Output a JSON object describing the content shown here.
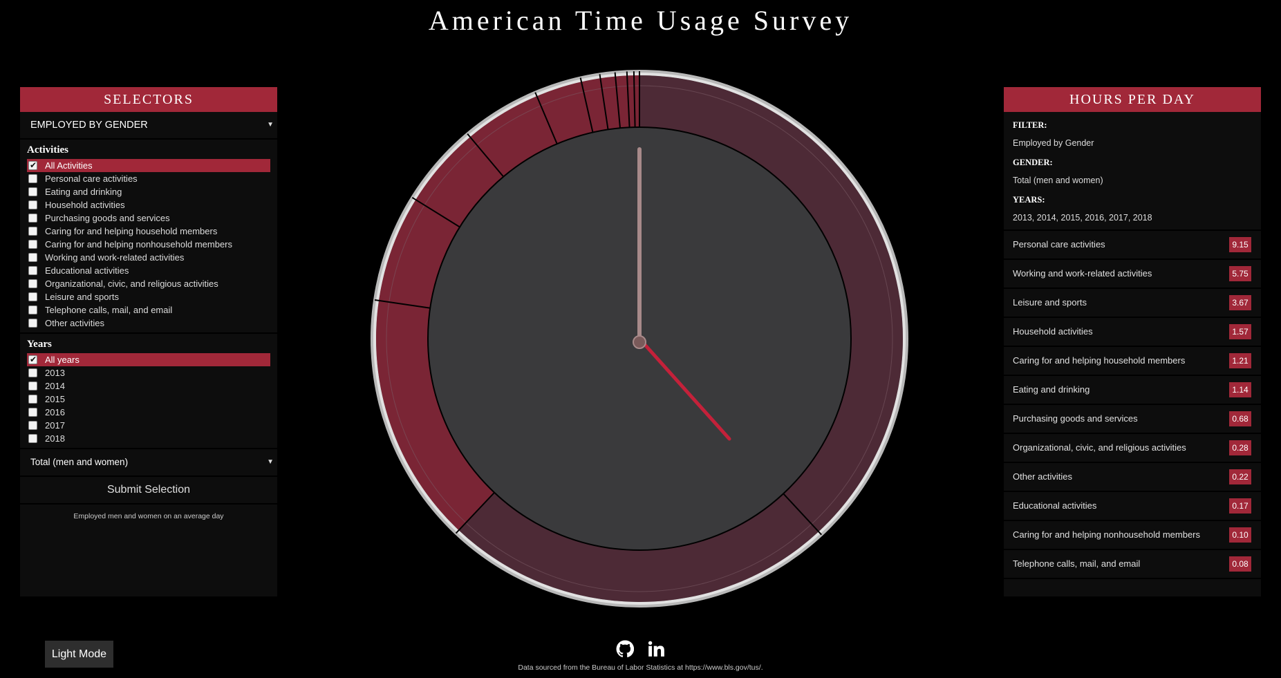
{
  "title": "American Time Usage Survey",
  "selectors": {
    "header": "SELECTORS",
    "dataset": "EMPLOYED BY GENDER",
    "activities_title": "Activities",
    "activities": [
      {
        "label": "All Activities",
        "checked": true
      },
      {
        "label": "Personal care activities",
        "checked": false
      },
      {
        "label": "Eating and drinking",
        "checked": false
      },
      {
        "label": "Household activities",
        "checked": false
      },
      {
        "label": "Purchasing goods and services",
        "checked": false
      },
      {
        "label": "Caring for and helping household members",
        "checked": false
      },
      {
        "label": "Caring for and helping nonhousehold members",
        "checked": false
      },
      {
        "label": "Working and work-related activities",
        "checked": false
      },
      {
        "label": "Educational activities",
        "checked": false
      },
      {
        "label": "Organizational, civic, and religious activities",
        "checked": false
      },
      {
        "label": "Leisure and sports",
        "checked": false
      },
      {
        "label": "Telephone calls, mail, and email",
        "checked": false
      },
      {
        "label": "Other activities",
        "checked": false
      }
    ],
    "years_title": "Years",
    "years": [
      {
        "label": "All years",
        "checked": true
      },
      {
        "label": "2013",
        "checked": false
      },
      {
        "label": "2014",
        "checked": false
      },
      {
        "label": "2015",
        "checked": false
      },
      {
        "label": "2016",
        "checked": false
      },
      {
        "label": "2017",
        "checked": false
      },
      {
        "label": "2018",
        "checked": false
      }
    ],
    "gender": "Total (men and women)",
    "submit": "Submit Selection",
    "note": "Employed men and women on an average day"
  },
  "hours": {
    "header": "HOURS PER DAY",
    "filter_label": "FILTER:",
    "filter_value": "Employed by Gender",
    "gender_label": "GENDER:",
    "gender_value": "Total (men and women)",
    "years_label": "YEARS:",
    "years_value": "2013, 2014, 2015, 2016, 2017, 2018",
    "rows": [
      {
        "label": "Personal care activities",
        "value": "9.15"
      },
      {
        "label": "Working and work-related activities",
        "value": "5.75"
      },
      {
        "label": "Leisure and sports",
        "value": "3.67"
      },
      {
        "label": "Household activities",
        "value": "1.57"
      },
      {
        "label": "Caring for and helping household members",
        "value": "1.21"
      },
      {
        "label": "Eating and drinking",
        "value": "1.14"
      },
      {
        "label": "Purchasing goods and services",
        "value": "0.68"
      },
      {
        "label": "Organizational, civic, and religious activities",
        "value": "0.28"
      },
      {
        "label": "Other activities",
        "value": "0.22"
      },
      {
        "label": "Educational activities",
        "value": "0.17"
      },
      {
        "label": "Caring for and helping nonhousehold members",
        "value": "0.10"
      },
      {
        "label": "Telephone calls, mail, and email",
        "value": "0.08"
      }
    ]
  },
  "chart_data": {
    "type": "pie",
    "note": "24-hour clock ring; slices sequential clockwise from 12 o'clock",
    "slices": [
      {
        "label": "Personal care activities",
        "value": 9.15
      },
      {
        "label": "Working and work-related activities",
        "value": 5.75
      },
      {
        "label": "Leisure and sports",
        "value": 3.67
      },
      {
        "label": "Household activities",
        "value": 1.57
      },
      {
        "label": "Caring for and helping household members",
        "value": 1.21
      },
      {
        "label": "Eating and drinking",
        "value": 1.14
      },
      {
        "label": "Purchasing goods and services",
        "value": 0.68
      },
      {
        "label": "Organizational, civic, and religious activities",
        "value": 0.28
      },
      {
        "label": "Other activities",
        "value": 0.22
      },
      {
        "label": "Educational activities",
        "value": 0.17
      },
      {
        "label": "Caring for and helping nonhousehold members",
        "value": 0.1
      },
      {
        "label": "Telephone calls, mail, and email",
        "value": 0.08
      }
    ],
    "colors": {
      "large": "#4d2a36",
      "small": "#7a2535",
      "divider": "#000000",
      "face": "#3a3a3c",
      "rim": "#c9c9c9",
      "hand_hour": "#c4213a",
      "hand_minute": "#a88a8a"
    }
  },
  "footer": {
    "light_mode": "Light Mode",
    "icons": [
      "github-icon",
      "linkedin-icon"
    ],
    "source": "Data sourced from the Bureau of Labor Statistics at https://www.bls.gov/tus/."
  }
}
